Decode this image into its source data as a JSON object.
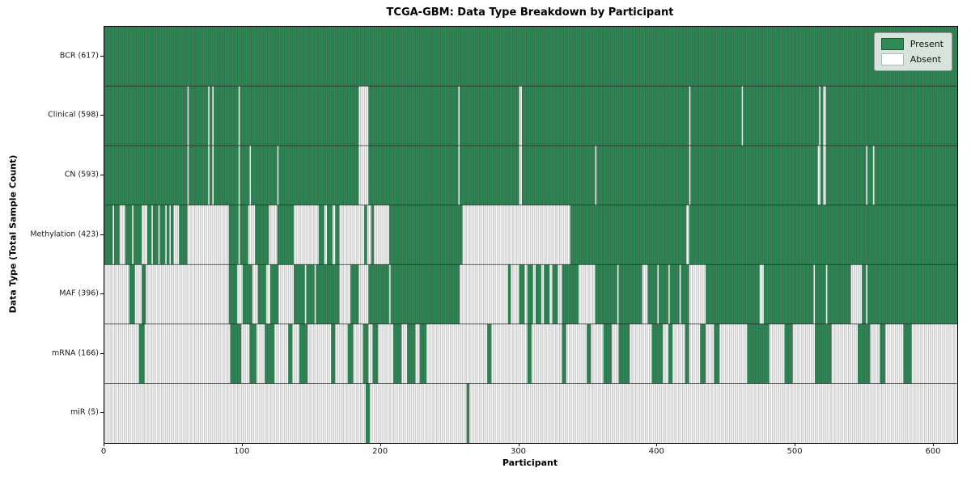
{
  "title": "TCGA-GBM: Data Type Breakdown by Participant",
  "xlabel": "Participant",
  "ylabel": "Data Type (Total Sample Count)",
  "legend": {
    "present_label": "Present",
    "absent_label": "Absent"
  },
  "colors": {
    "present": "#2e8b57",
    "absent": "#ffffff",
    "cell_edge": "rgba(55,55,55,0.45)",
    "row_separator": "rgba(25,25,25,0.75)",
    "spine": "#000000",
    "text": "#1a1a1a",
    "legend_bg": "rgba(238,242,238,0.88)",
    "legend_border": "#9a9a9a"
  },
  "chart_data": {
    "type": "heatmap",
    "title": "TCGA-GBM: Data Type Breakdown by Participant",
    "xlabel": "Participant",
    "ylabel": "Data Type (Total Sample Count)",
    "x_range": [
      0,
      617
    ],
    "x_ticks": [
      0,
      100,
      200,
      300,
      400,
      500,
      600
    ],
    "legend_entries": [
      "Present",
      "Absent"
    ],
    "legend_position": "upper right",
    "grid": false,
    "encoding": "runs = [value,count] pairs left-to-right across 617 participants; 1=Present(green), 0=Absent(white); counts sum to 617 per row",
    "rows": [
      {
        "label": "BCR (617)",
        "present_count": 617,
        "runs": [
          [
            1,
            617
          ]
        ]
      },
      {
        "label": "Clinical (598)",
        "present_count": 598,
        "runs": [
          [
            1,
            60
          ],
          [
            0,
            1
          ],
          [
            1,
            14
          ],
          [
            0,
            1
          ],
          [
            1,
            2
          ],
          [
            0,
            1
          ],
          [
            1,
            18
          ],
          [
            0,
            1
          ],
          [
            1,
            86
          ],
          [
            0,
            7
          ],
          [
            1,
            65
          ],
          [
            0,
            1
          ],
          [
            1,
            43
          ],
          [
            0,
            2
          ],
          [
            1,
            121
          ],
          [
            0,
            1
          ],
          [
            1,
            37
          ],
          [
            0,
            1
          ],
          [
            1,
            55
          ],
          [
            0,
            1
          ],
          [
            1,
            2
          ],
          [
            0,
            2
          ],
          [
            1,
            95
          ]
        ]
      },
      {
        "label": "CN (593)",
        "present_count": 593,
        "runs": [
          [
            1,
            60
          ],
          [
            0,
            1
          ],
          [
            1,
            14
          ],
          [
            0,
            1
          ],
          [
            1,
            2
          ],
          [
            0,
            1
          ],
          [
            1,
            18
          ],
          [
            0,
            1
          ],
          [
            1,
            7
          ],
          [
            0,
            1
          ],
          [
            1,
            19
          ],
          [
            0,
            1
          ],
          [
            1,
            58
          ],
          [
            0,
            7
          ],
          [
            1,
            65
          ],
          [
            0,
            1
          ],
          [
            1,
            43
          ],
          [
            0,
            2
          ],
          [
            1,
            53
          ],
          [
            0,
            1
          ],
          [
            1,
            67
          ],
          [
            0,
            1
          ],
          [
            1,
            92
          ],
          [
            0,
            2
          ],
          [
            1,
            2
          ],
          [
            0,
            2
          ],
          [
            1,
            29
          ],
          [
            0,
            1
          ],
          [
            1,
            4
          ],
          [
            0,
            1
          ],
          [
            1,
            60
          ]
        ]
      },
      {
        "label": "Methylation (423)",
        "present_count": 423,
        "runs": [
          [
            1,
            6
          ],
          [
            0,
            1
          ],
          [
            1,
            4
          ],
          [
            0,
            4
          ],
          [
            1,
            5
          ],
          [
            0,
            1
          ],
          [
            1,
            6
          ],
          [
            0,
            4
          ],
          [
            1,
            3
          ],
          [
            0,
            1
          ],
          [
            1,
            4
          ],
          [
            0,
            1
          ],
          [
            1,
            4
          ],
          [
            0,
            1
          ],
          [
            1,
            2
          ],
          [
            0,
            1
          ],
          [
            1,
            2
          ],
          [
            0,
            4
          ],
          [
            1,
            6
          ],
          [
            0,
            30
          ],
          [
            1,
            7
          ],
          [
            0,
            1
          ],
          [
            1,
            6
          ],
          [
            0,
            5
          ],
          [
            1,
            10
          ],
          [
            0,
            6
          ],
          [
            1,
            12
          ],
          [
            0,
            18
          ],
          [
            1,
            4
          ],
          [
            0,
            2
          ],
          [
            1,
            4
          ],
          [
            0,
            2
          ],
          [
            1,
            3
          ],
          [
            0,
            18
          ],
          [
            1,
            2
          ],
          [
            0,
            3
          ],
          [
            1,
            2
          ],
          [
            0,
            11
          ],
          [
            1,
            53
          ],
          [
            0,
            78
          ],
          [
            1,
            84
          ],
          [
            0,
            2
          ],
          [
            1,
            194
          ]
        ]
      },
      {
        "label": "MAF (396)",
        "present_count": 396,
        "runs": [
          [
            0,
            18
          ],
          [
            1,
            4
          ],
          [
            0,
            5
          ],
          [
            1,
            3
          ],
          [
            0,
            60
          ],
          [
            1,
            6
          ],
          [
            0,
            4
          ],
          [
            1,
            7
          ],
          [
            0,
            4
          ],
          [
            1,
            6
          ],
          [
            0,
            3
          ],
          [
            1,
            6
          ],
          [
            0,
            11
          ],
          [
            1,
            8
          ],
          [
            0,
            1
          ],
          [
            1,
            6
          ],
          [
            0,
            1
          ],
          [
            1,
            17
          ],
          [
            0,
            8
          ],
          [
            1,
            6
          ],
          [
            0,
            7
          ],
          [
            1,
            15
          ],
          [
            0,
            1
          ],
          [
            1,
            50
          ],
          [
            0,
            35
          ],
          [
            1,
            2
          ],
          [
            0,
            6
          ],
          [
            1,
            4
          ],
          [
            0,
            2
          ],
          [
            1,
            4
          ],
          [
            0,
            2
          ],
          [
            1,
            4
          ],
          [
            0,
            2
          ],
          [
            1,
            4
          ],
          [
            0,
            2
          ],
          [
            1,
            4
          ],
          [
            0,
            3
          ],
          [
            1,
            12
          ],
          [
            0,
            12
          ],
          [
            1,
            16
          ],
          [
            0,
            1
          ],
          [
            1,
            17
          ],
          [
            0,
            4
          ],
          [
            1,
            7
          ],
          [
            0,
            1
          ],
          [
            1,
            7
          ],
          [
            0,
            1
          ],
          [
            1,
            7
          ],
          [
            0,
            1
          ],
          [
            1,
            6
          ],
          [
            0,
            12
          ],
          [
            1,
            39
          ],
          [
            0,
            3
          ],
          [
            1,
            36
          ],
          [
            0,
            1
          ],
          [
            1,
            8
          ],
          [
            0,
            1
          ],
          [
            1,
            17
          ],
          [
            0,
            8
          ],
          [
            1,
            3
          ],
          [
            0,
            1
          ],
          [
            1,
            65
          ]
        ]
      },
      {
        "label": "mRNA (166)",
        "present_count": 166,
        "runs": [
          [
            0,
            25
          ],
          [
            1,
            4
          ],
          [
            0,
            62
          ],
          [
            1,
            8
          ],
          [
            0,
            6
          ],
          [
            1,
            5
          ],
          [
            0,
            6
          ],
          [
            1,
            7
          ],
          [
            0,
            10
          ],
          [
            1,
            3
          ],
          [
            0,
            5
          ],
          [
            1,
            6
          ],
          [
            0,
            17
          ],
          [
            1,
            3
          ],
          [
            0,
            9
          ],
          [
            1,
            4
          ],
          [
            0,
            7
          ],
          [
            1,
            4
          ],
          [
            0,
            3
          ],
          [
            1,
            4
          ],
          [
            0,
            11
          ],
          [
            1,
            6
          ],
          [
            0,
            4
          ],
          [
            1,
            6
          ],
          [
            0,
            3
          ],
          [
            1,
            5
          ],
          [
            0,
            44
          ],
          [
            1,
            3
          ],
          [
            0,
            26
          ],
          [
            1,
            3
          ],
          [
            0,
            22
          ],
          [
            1,
            3
          ],
          [
            0,
            15
          ],
          [
            1,
            3
          ],
          [
            0,
            9
          ],
          [
            1,
            6
          ],
          [
            0,
            5
          ],
          [
            1,
            8
          ],
          [
            0,
            16
          ],
          [
            1,
            8
          ],
          [
            0,
            4
          ],
          [
            1,
            3
          ],
          [
            0,
            9
          ],
          [
            1,
            3
          ],
          [
            0,
            8
          ],
          [
            1,
            4
          ],
          [
            0,
            6
          ],
          [
            1,
            4
          ],
          [
            0,
            20
          ],
          [
            1,
            16
          ],
          [
            0,
            11
          ],
          [
            1,
            6
          ],
          [
            0,
            16
          ],
          [
            1,
            12
          ],
          [
            0,
            19
          ],
          [
            1,
            9
          ],
          [
            0,
            7
          ],
          [
            1,
            4
          ],
          [
            0,
            13
          ],
          [
            1,
            6
          ],
          [
            0,
            33
          ]
        ]
      },
      {
        "label": "miR (5)",
        "present_count": 5,
        "runs": [
          [
            0,
            189
          ],
          [
            1,
            3
          ],
          [
            0,
            70
          ],
          [
            1,
            2
          ],
          [
            0,
            353
          ]
        ]
      }
    ]
  }
}
